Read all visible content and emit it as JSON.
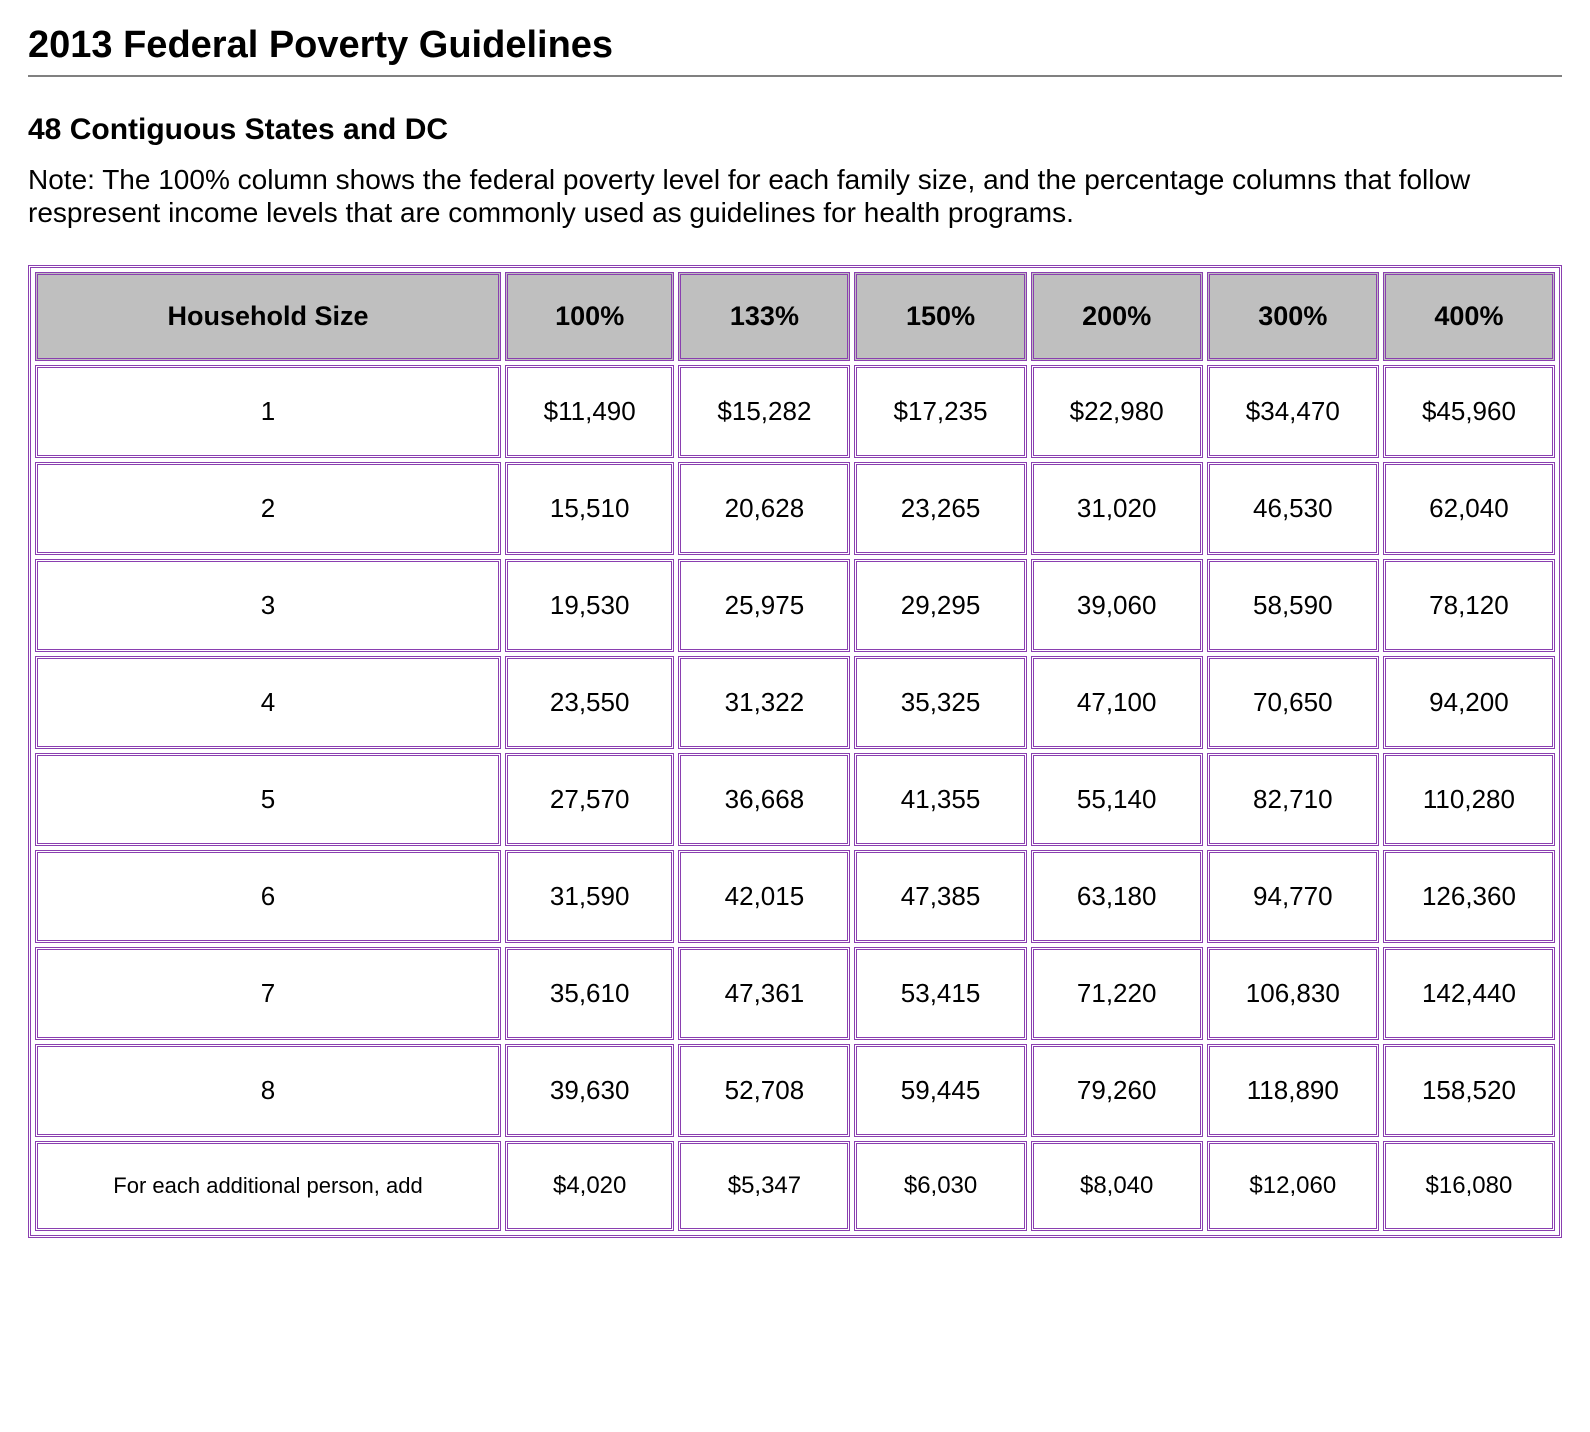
{
  "title": "2013 Federal Poverty Guidelines",
  "subheading": "48 Contiguous States and DC",
  "note": "Note: The 100% column shows the federal poverty level for each family size, and the percentage columns that follow respresent income levels that are commonly used as guidelines for health programs.",
  "table": {
    "type": "table",
    "border_color": "#8a3fb0",
    "header_bg": "#bfbfbf",
    "cell_bg": "#ffffff",
    "header_font_size": 27,
    "cell_font_size": 26,
    "footer_label_font_size": 22,
    "footer_cell_font_size": 24,
    "columns": [
      "Household Size",
      "100%",
      "133%",
      "150%",
      "200%",
      "300%",
      "400%"
    ],
    "rows": [
      {
        "hh": "1",
        "c1": "$11,490",
        "c2": "$15,282",
        "c3": "$17,235",
        "c4": "$22,980",
        "c5": "$34,470",
        "c6": "$45,960"
      },
      {
        "hh": "2",
        "c1": "15,510",
        "c2": "20,628",
        "c3": "23,265",
        "c4": "31,020",
        "c5": "46,530",
        "c6": "62,040"
      },
      {
        "hh": "3",
        "c1": "19,530",
        "c2": "25,975",
        "c3": "29,295",
        "c4": "39,060",
        "c5": "58,590",
        "c6": "78,120"
      },
      {
        "hh": "4",
        "c1": "23,550",
        "c2": "31,322",
        "c3": "35,325",
        "c4": "47,100",
        "c5": "70,650",
        "c6": "94,200"
      },
      {
        "hh": "5",
        "c1": "27,570",
        "c2": "36,668",
        "c3": "41,355",
        "c4": "55,140",
        "c5": "82,710",
        "c6": "110,280"
      },
      {
        "hh": "6",
        "c1": "31,590",
        "c2": "42,015",
        "c3": "47,385",
        "c4": "63,180",
        "c5": "94,770",
        "c6": "126,360"
      },
      {
        "hh": "7",
        "c1": "35,610",
        "c2": "47,361",
        "c3": "53,415",
        "c4": "71,220",
        "c5": "106,830",
        "c6": "142,440"
      },
      {
        "hh": "8",
        "c1": "39,630",
        "c2": "52,708",
        "c3": "59,445",
        "c4": "79,260",
        "c5": "118,890",
        "c6": "158,520"
      }
    ],
    "footer": {
      "label": "For each additional person, add",
      "c1": "$4,020",
      "c2": "$5,347",
      "c3": "$6,030",
      "c4": "$8,040",
      "c5": "$12,060",
      "c6": "$16,080"
    }
  }
}
